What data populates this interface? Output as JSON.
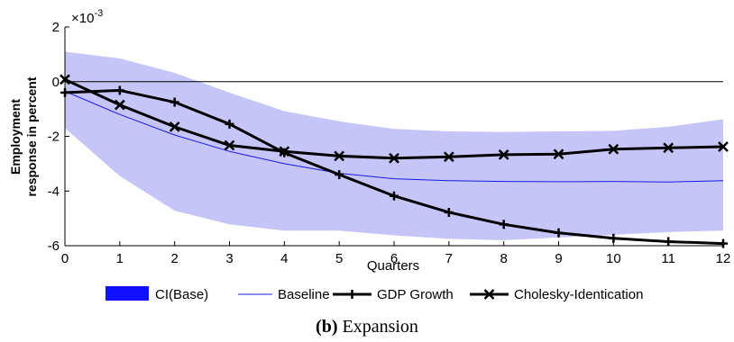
{
  "chart_data": {
    "type": "line",
    "exponent_label": "×10",
    "exponent_power": "-3",
    "xlabel": "Quarters",
    "ylabel_line1": "Employment",
    "ylabel_line2": "response in percent",
    "xlim": [
      0,
      12
    ],
    "ylim": [
      -6,
      2
    ],
    "xticks": [
      0,
      1,
      2,
      3,
      4,
      5,
      6,
      7,
      8,
      9,
      10,
      11,
      12
    ],
    "yticks": [
      -6,
      -4,
      -2,
      0,
      2
    ],
    "ytick_labels": [
      "-6",
      "-4",
      "-2",
      "0",
      "2"
    ],
    "grid": false,
    "zero_line": true,
    "x": [
      0,
      1,
      2,
      3,
      4,
      5,
      6,
      7,
      8,
      9,
      10,
      11,
      12
    ],
    "band": {
      "name": "CI(Base)",
      "color": "#c5c5f7",
      "legend_color": "#1010ff",
      "upper": [
        1.1,
        0.85,
        0.32,
        -0.4,
        -1.08,
        -1.45,
        -1.73,
        -1.82,
        -1.84,
        -1.82,
        -1.8,
        -1.65,
        -1.38
      ],
      "lower": [
        -1.7,
        -3.45,
        -4.72,
        -5.22,
        -5.45,
        -5.45,
        -5.62,
        -5.75,
        -5.8,
        -5.7,
        -5.6,
        -5.5,
        -5.45
      ]
    },
    "series": [
      {
        "name": "Baseline",
        "color": "#1a1ae6",
        "style": "thin",
        "marker": "none",
        "values": [
          -0.35,
          -1.2,
          -1.95,
          -2.55,
          -3.0,
          -3.35,
          -3.55,
          -3.62,
          -3.65,
          -3.66,
          -3.65,
          -3.67,
          -3.62
        ]
      },
      {
        "name": "GDP Growth",
        "color": "#000000",
        "style": "thick",
        "marker": "plus",
        "values": [
          -0.4,
          -0.32,
          -0.75,
          -1.55,
          -2.6,
          -3.4,
          -4.18,
          -4.78,
          -5.22,
          -5.53,
          -5.73,
          -5.85,
          -5.92
        ]
      },
      {
        "name": "Cholesky-Identication",
        "color": "#000000",
        "style": "thick",
        "marker": "x",
        "values": [
          0.08,
          -0.85,
          -1.65,
          -2.33,
          -2.55,
          -2.72,
          -2.8,
          -2.75,
          -2.67,
          -2.65,
          -2.47,
          -2.42,
          -2.38
        ]
      }
    ]
  },
  "caption": {
    "label": "(b)",
    "text": " Expansion"
  }
}
